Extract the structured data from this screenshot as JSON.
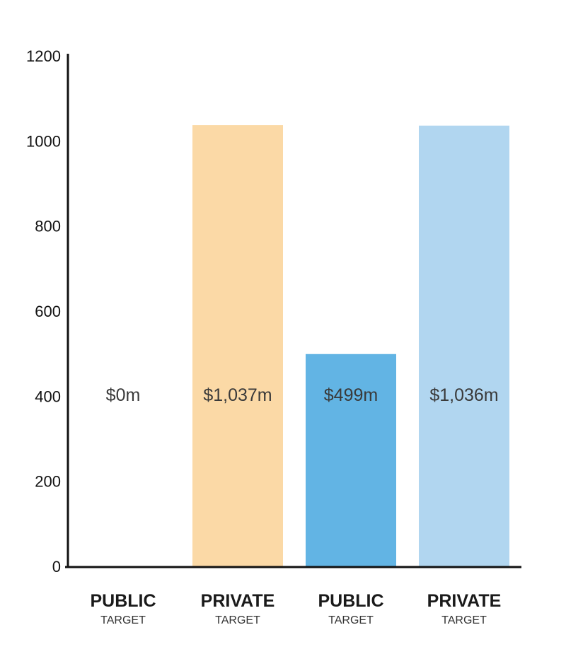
{
  "chart_data": {
    "type": "bar",
    "categories": [
      {
        "main": "PUBLIC",
        "sub": "TARGET"
      },
      {
        "main": "PRIVATE",
        "sub": "TARGET"
      },
      {
        "main": "PUBLIC",
        "sub": "TARGET"
      },
      {
        "main": "PRIVATE",
        "sub": "TARGET"
      }
    ],
    "values": [
      0,
      1037,
      499,
      1036
    ],
    "data_labels": [
      "$0m",
      "$1,037m",
      "$499m",
      "$1,036m"
    ],
    "colors": [
      "#ffffff",
      "#fbd9a6",
      "#62b4e4",
      "#b1d6f0"
    ],
    "yticks": [
      "0",
      "200",
      "400",
      "600",
      "800",
      "1000",
      "1200"
    ],
    "ylim": [
      0,
      1200
    ],
    "title": "",
    "xlabel": "",
    "ylabel": "",
    "grid": false,
    "legend": "none"
  }
}
